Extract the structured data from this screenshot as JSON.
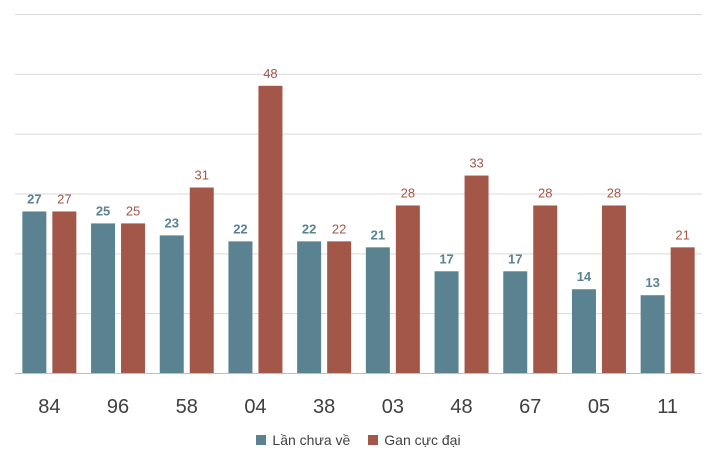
{
  "chart_data": {
    "type": "bar",
    "categories": [
      "84",
      "96",
      "58",
      "04",
      "38",
      "03",
      "48",
      "67",
      "05",
      "11"
    ],
    "series": [
      {
        "name": "Lần chưa về",
        "color": "#5b8290",
        "values": [
          27,
          25,
          23,
          22,
          22,
          21,
          17,
          17,
          14,
          13
        ]
      },
      {
        "name": "Gan cực đại",
        "color": "#a25748",
        "values": [
          27,
          25,
          31,
          48,
          22,
          28,
          33,
          28,
          28,
          21
        ]
      }
    ],
    "ylim": [
      0,
      60
    ],
    "grid": true,
    "legend_position": "bottom",
    "data_labels": true
  }
}
